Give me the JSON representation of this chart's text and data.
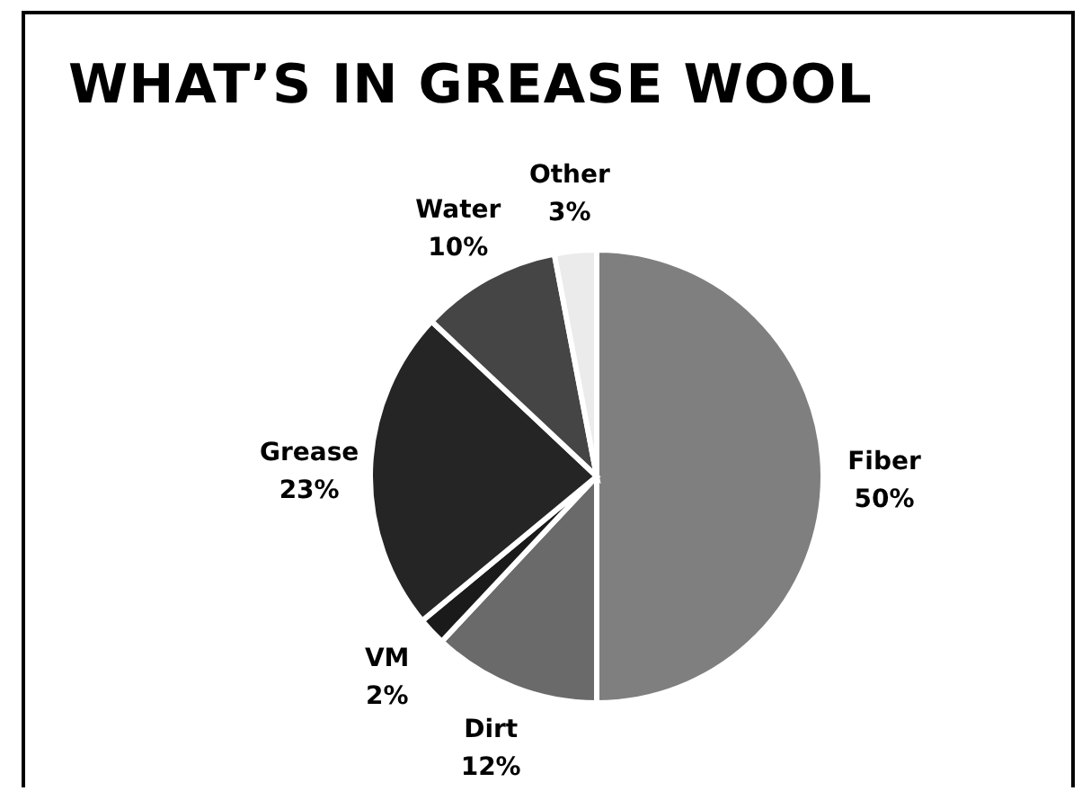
{
  "chart_data": {
    "type": "pie",
    "title": "WHAT’S IN GREASE WOOL",
    "categories": [
      "Fiber",
      "Dirt",
      "VM",
      "Grease",
      "Water",
      "Other"
    ],
    "values": [
      50,
      12,
      2,
      23,
      10,
      3
    ],
    "value_labels": [
      "50%",
      "12%",
      "2%",
      "23%",
      "10%",
      "3%"
    ],
    "colors": [
      "#7f7f7f",
      "#6a6a6a",
      "#1a1a1a",
      "#252525",
      "#454545",
      "#ebebeb"
    ]
  }
}
